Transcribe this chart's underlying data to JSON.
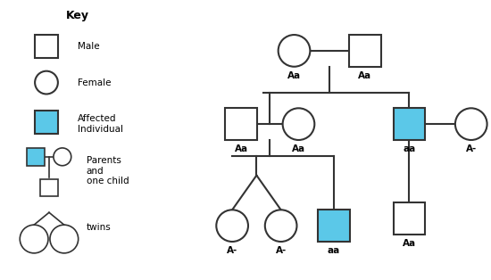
{
  "bg_color": "#ffffff",
  "shape_color_normal": "#ffffff",
  "shape_color_affected": "#5bc8e8",
  "shape_edge_color": "#333333",
  "line_color": "#333333",
  "text_color": "#000000",
  "lw": 1.5,
  "key_title": "Key",
  "key_male_label": "Male",
  "key_female_label": "Female",
  "key_affected_label": "Affected\nIndividual",
  "key_parents_label": "Parents\nand\none child",
  "key_twins_label": "twins"
}
